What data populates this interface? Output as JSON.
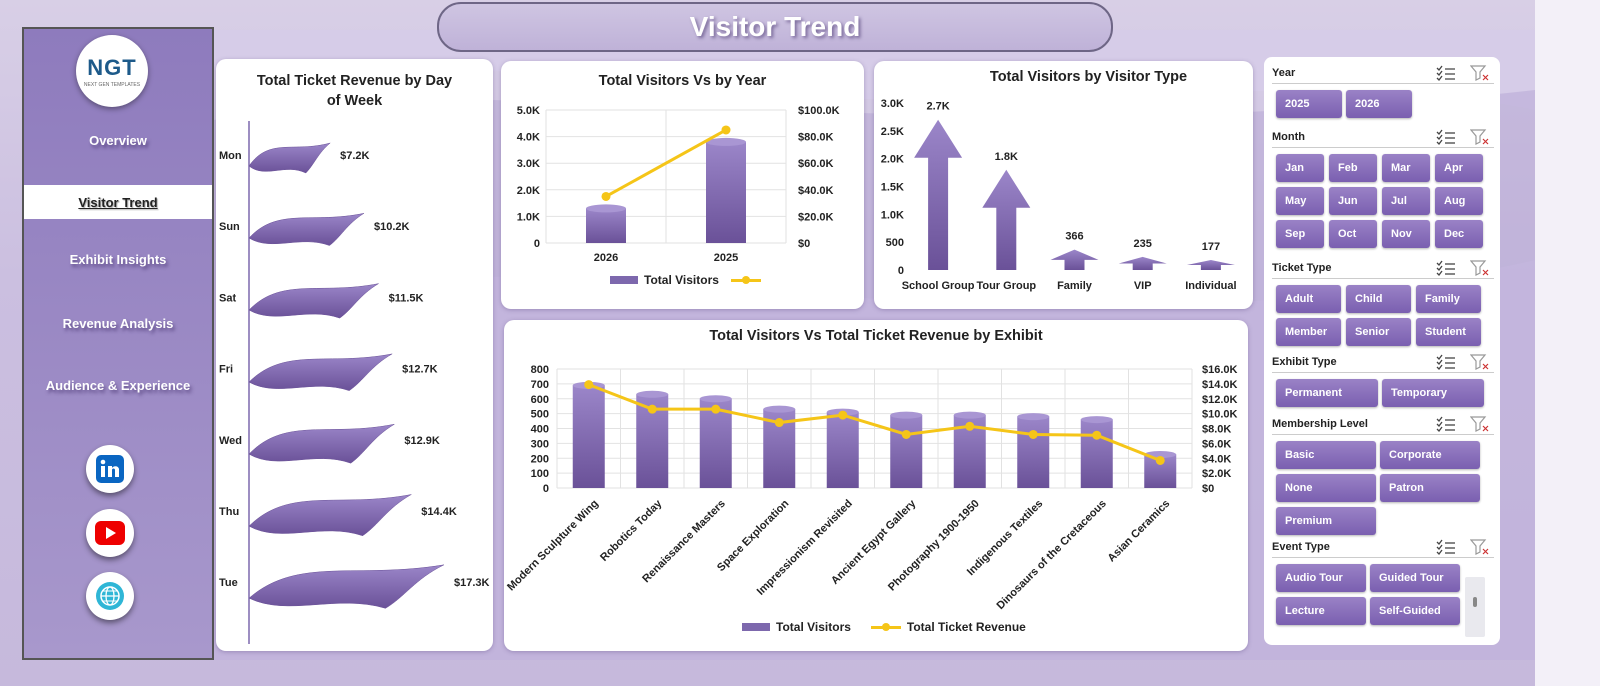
{
  "header": {
    "title": "Visitor Trend"
  },
  "logo": {
    "main": "NGT",
    "sub": "NEXT GEN TEMPLATES"
  },
  "sidebar": {
    "items": [
      {
        "label": "Overview",
        "active": false
      },
      {
        "label": "Visitor Trend",
        "active": true
      },
      {
        "label": "Exhibit Insights",
        "active": false
      },
      {
        "label": "Revenue Analysis",
        "active": false
      },
      {
        "label": "Audience & Experience",
        "active": false
      }
    ],
    "social": [
      "linkedin-icon",
      "youtube-icon",
      "globe-icon"
    ]
  },
  "colors": {
    "bar": "#7d68ad",
    "line": "#f5c518",
    "accent": "#8e7bbd"
  },
  "charts": {
    "day_of_week": {
      "title": "Total Ticket Revenue  by Day of Week",
      "chart_data": {
        "type": "bar",
        "orientation": "horizontal",
        "categories": [
          "Mon",
          "Sun",
          "Sat",
          "Fri",
          "Wed",
          "Thu",
          "Tue"
        ],
        "values": [
          7.2,
          10.2,
          11.5,
          12.7,
          12.9,
          14.4,
          17.3
        ],
        "labels": [
          "$7.2K",
          "$10.2K",
          "$11.5K",
          "$12.7K",
          "$12.9K",
          "$14.4K",
          "$17.3K"
        ]
      }
    },
    "by_year": {
      "title": "Total Visitors Vs  by Year",
      "legend": {
        "bar": "Total Visitors",
        "line": ""
      },
      "chart_data": {
        "type": "bar",
        "categories": [
          "2026",
          "2025"
        ],
        "series": [
          {
            "name": "Total Visitors",
            "type": "bar",
            "values": [
              1300,
              3800
            ]
          },
          {
            "name": "",
            "type": "line",
            "axis": "right",
            "values": [
              35000,
              85000
            ]
          }
        ],
        "left_ticks": [
          "5.0K",
          "4.0K",
          "3.0K",
          "2.0K",
          "1.0K",
          "0"
        ],
        "right_ticks": [
          "$100.0K",
          "$80.0K",
          "$60.0K",
          "$40.0K",
          "$20.0K",
          "$0"
        ],
        "ylim_left": [
          0,
          5000
        ],
        "ylim_right": [
          0,
          100000
        ]
      }
    },
    "visitor_type": {
      "title": "Total Visitors by Visitor Type",
      "chart_data": {
        "type": "bar",
        "categories": [
          "School Group",
          "Tour Group",
          "Family",
          "VIP",
          "Individual"
        ],
        "values": [
          2700,
          1800,
          366,
          235,
          177
        ],
        "labels": [
          "2.7K",
          "1.8K",
          "366",
          "235",
          "177"
        ],
        "ticks": [
          "3.0K",
          "2.5K",
          "2.0K",
          "1.5K",
          "1.0K",
          "500",
          "0"
        ],
        "ylim": [
          0,
          3000
        ]
      }
    },
    "by_exhibit": {
      "title": "Total Visitors Vs Total Ticket Revenue  by Exhibit",
      "legend": {
        "bar": "Total Visitors",
        "line": "Total Ticket Revenue"
      },
      "chart_data": {
        "type": "bar",
        "categories": [
          "Modern Sculpture Wing",
          "Robotics Today",
          "Renaissance Masters",
          "Space Exploration",
          "Impressionism Revisited",
          "Ancient Egypt Gallery",
          "Photography 1900-1950",
          "Indigenous Textiles",
          "Dinosaurs of the Cretaceous",
          "Asian Ceramics"
        ],
        "series": [
          {
            "name": "Total Visitors",
            "type": "bar",
            "values": [
              690,
              630,
              600,
              530,
              510,
              490,
              490,
              480,
              460,
              225
            ]
          },
          {
            "name": "Total Ticket Revenue",
            "type": "line",
            "axis": "right",
            "values": [
              13900,
              10600,
              10600,
              8800,
              9800,
              7200,
              8300,
              7200,
              7100,
              3700
            ]
          }
        ],
        "left_ticks": [
          "800",
          "700",
          "600",
          "500",
          "400",
          "300",
          "200",
          "100",
          "0"
        ],
        "right_ticks": [
          "$16.0K",
          "$14.0K",
          "$12.0K",
          "$10.0K",
          "$8.0K",
          "$6.0K",
          "$4.0K",
          "$2.0K",
          "$0"
        ],
        "ylim_left": [
          0,
          800
        ],
        "ylim_right": [
          0,
          16000
        ]
      }
    }
  },
  "slicers": [
    {
      "title": "Year",
      "items": [
        "2025",
        "2026"
      ]
    },
    {
      "title": "Month",
      "items": [
        "Jan",
        "Feb",
        "Mar",
        "Apr",
        "May",
        "Jun",
        "Jul",
        "Aug",
        "Sep",
        "Oct",
        "Nov",
        "Dec"
      ]
    },
    {
      "title": "Ticket Type",
      "items": [
        "Adult",
        "Child",
        "Family",
        "Member",
        "Senior",
        "Student"
      ]
    },
    {
      "title": "Exhibit Type",
      "items": [
        "Permanent",
        "Temporary"
      ]
    },
    {
      "title": "Membership Level",
      "items": [
        "Basic",
        "Corporate",
        "None",
        "Patron",
        "Premium"
      ]
    },
    {
      "title": "Event Type",
      "items": [
        "Audio Tour",
        "Guided Tour",
        "Lecture",
        "Self-Guided"
      ]
    }
  ]
}
